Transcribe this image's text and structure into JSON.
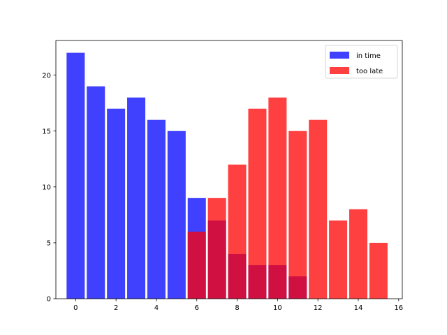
{
  "chart_data": {
    "type": "bar",
    "title": "",
    "xlabel": "",
    "ylabel": "",
    "xlim": [
      -0.98,
      16.18
    ],
    "ylim": [
      0,
      23.1
    ],
    "xticks": [
      0,
      2,
      4,
      6,
      8,
      10,
      12,
      14,
      16
    ],
    "yticks": [
      0,
      5,
      10,
      15,
      20
    ],
    "bar_width": 0.9,
    "grid": false,
    "legend_position": "top-right",
    "series": [
      {
        "name": "in time",
        "color": "#0000ff",
        "opacity": 0.75,
        "x": [
          0,
          1,
          2,
          3,
          4,
          5,
          6,
          7,
          8,
          9,
          10,
          11
        ],
        "values": [
          22,
          19,
          17,
          18,
          16,
          15,
          9,
          7,
          4,
          3,
          3,
          2
        ]
      },
      {
        "name": "too late",
        "color": "#ff0000",
        "opacity": 0.75,
        "x": [
          6,
          7,
          8,
          9,
          10,
          11,
          12,
          13,
          14,
          15
        ],
        "values": [
          6,
          9,
          12,
          17,
          18,
          15,
          16,
          7,
          8,
          5
        ]
      }
    ]
  }
}
